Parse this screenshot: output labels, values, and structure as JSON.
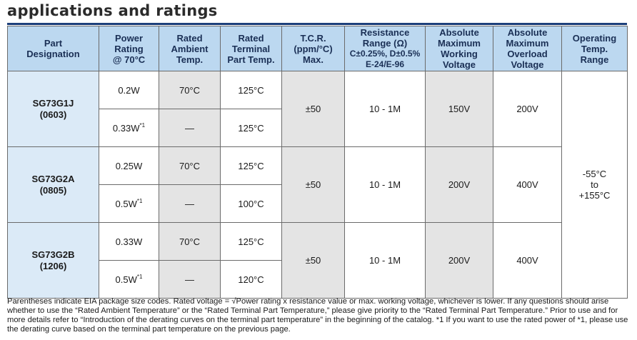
{
  "title": "applications and ratings",
  "headers": [
    [
      "Part",
      "Designation"
    ],
    [
      "Power",
      "Rating",
      "@ 70°C"
    ],
    [
      "Rated",
      "Ambient",
      "Temp."
    ],
    [
      "Rated",
      "Terminal",
      "Part Temp."
    ],
    [
      "T.C.R.",
      "(ppm/°C)",
      "Max."
    ],
    [
      "Resistance",
      "Range (Ω)",
      "C±0.25%, D±0.5%",
      "E-24/E-96"
    ],
    [
      "Absolute",
      "Maximum",
      "Working",
      "Voltage"
    ],
    [
      "Absolute",
      "Maximum",
      "Overload",
      "Voltage"
    ],
    [
      "Operating",
      "Temp.",
      "Range"
    ]
  ],
  "groups": [
    {
      "part": "SG73G1J",
      "size": "(0603)",
      "rows": [
        {
          "power": "0.2W",
          "power_note": "",
          "ambient": "70°C",
          "terminal": "125°C"
        },
        {
          "power": "0.33W",
          "power_note": "*1",
          "ambient": "—",
          "terminal": "125°C"
        }
      ],
      "tcr": "±50",
      "range": "10 - 1M",
      "working": "150V",
      "overload": "200V"
    },
    {
      "part": "SG73G2A",
      "size": "(0805)",
      "rows": [
        {
          "power": "0.25W",
          "power_note": "",
          "ambient": "70°C",
          "terminal": "125°C"
        },
        {
          "power": "0.5W",
          "power_note": "*1",
          "ambient": "—",
          "terminal": "100°C"
        }
      ],
      "tcr": "±50",
      "range": "10 - 1M",
      "working": "200V",
      "overload": "400V"
    },
    {
      "part": "SG73G2B",
      "size": "(1206)",
      "rows": [
        {
          "power": "0.33W",
          "power_note": "",
          "ambient": "70°C",
          "terminal": "125°C"
        },
        {
          "power": "0.5W",
          "power_note": "*1",
          "ambient": "—",
          "terminal": "120°C"
        }
      ],
      "tcr": "±50",
      "range": "10 - 1M",
      "working": "200V",
      "overload": "400V"
    }
  ],
  "operating_range": [
    "-55°C",
    "to",
    "+155°C"
  ],
  "footnote": "Parentheses indicate EIA package size codes. Rated voltage = √Power rating x resistance value or max. working voltage, whichever is lower. If any questions should arise whether to use the “Rated Ambient Temperature” or the “Rated Terminal Part Temperature,” please give priority to the “Rated Terminal Part Temperature.” Prior to use and for more details refer to “Introduction of the derating curves on the terminal part temperature” in the beginning of the catalog. *1 If you want to use the rated power of *1, please use the derating curve based on the terminal part temperature on the previous page.",
  "colors": {
    "header_bg": "#bcd8f0",
    "part_bg": "#dbeaf7",
    "gray_cell": "#e4e4e4",
    "rule": "#1c3f7a"
  }
}
